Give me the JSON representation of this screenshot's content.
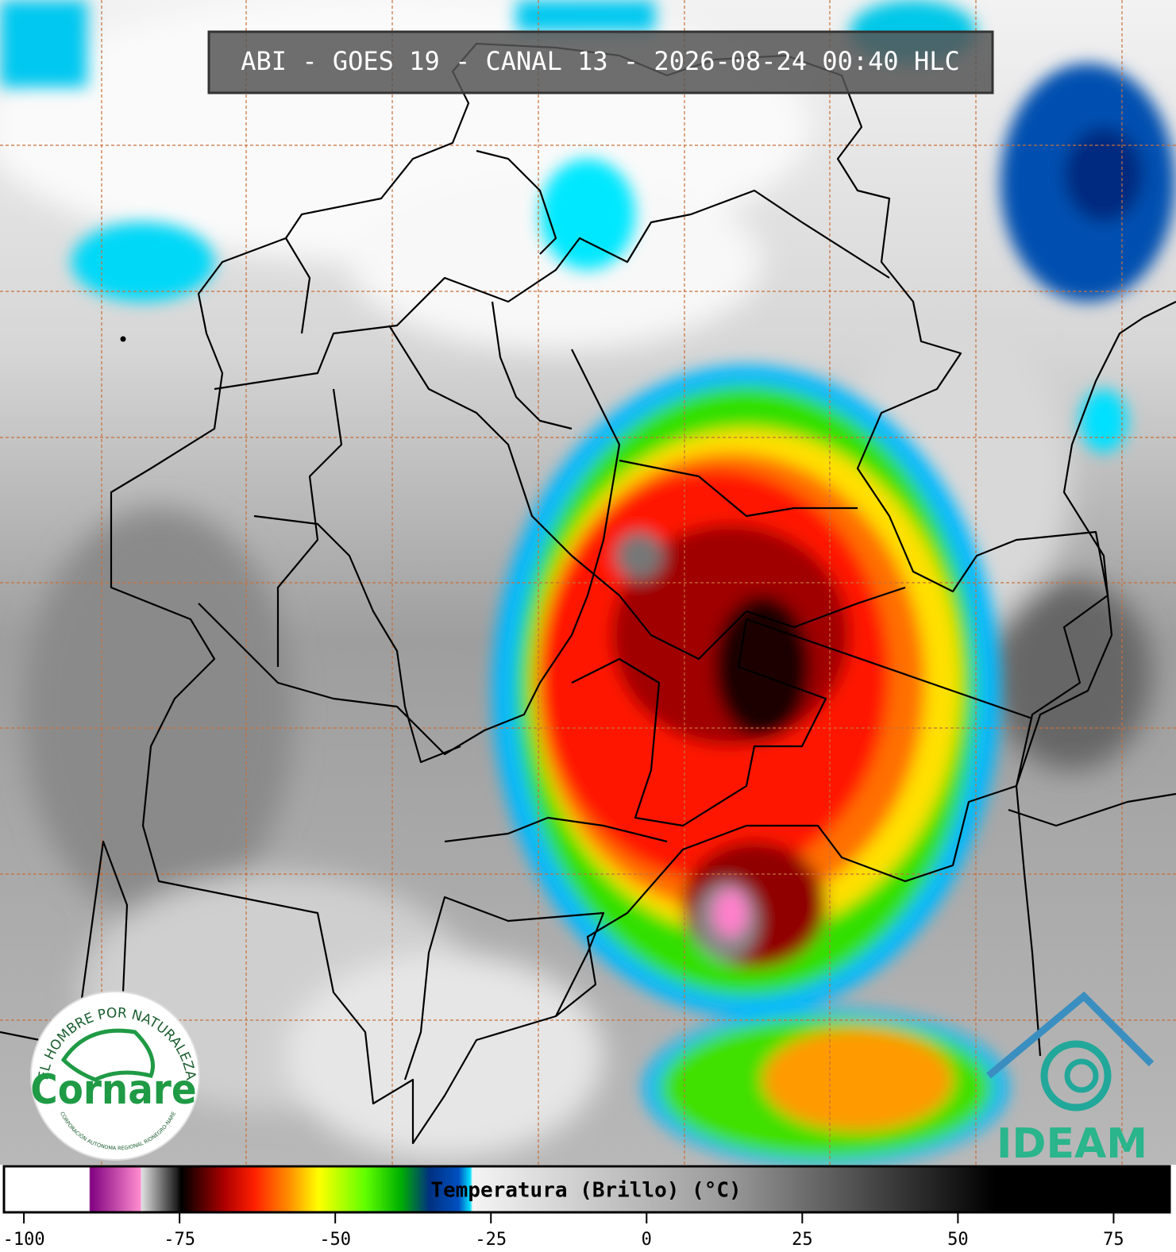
{
  "title": "ABI - GOES 19 - CANAL 13 - 2026-08-24 00:40 HLC",
  "colorbar": {
    "label": "Temperatura (Brillo) (°C)",
    "xlim": [
      -103.2,
      84
    ],
    "xticks": [
      -100,
      -75,
      -50,
      -25,
      0,
      25,
      50,
      75
    ]
  },
  "logos": {
    "cornare": {
      "motto": "EL HOMBRE POR NATURALEZA",
      "name": "Cornare",
      "subtitle": "CORPORACIÓN AUTÓNOMA REGIONAL RIONEGRO-NARE"
    },
    "ideam": {
      "name": "IDEAM"
    }
  }
}
